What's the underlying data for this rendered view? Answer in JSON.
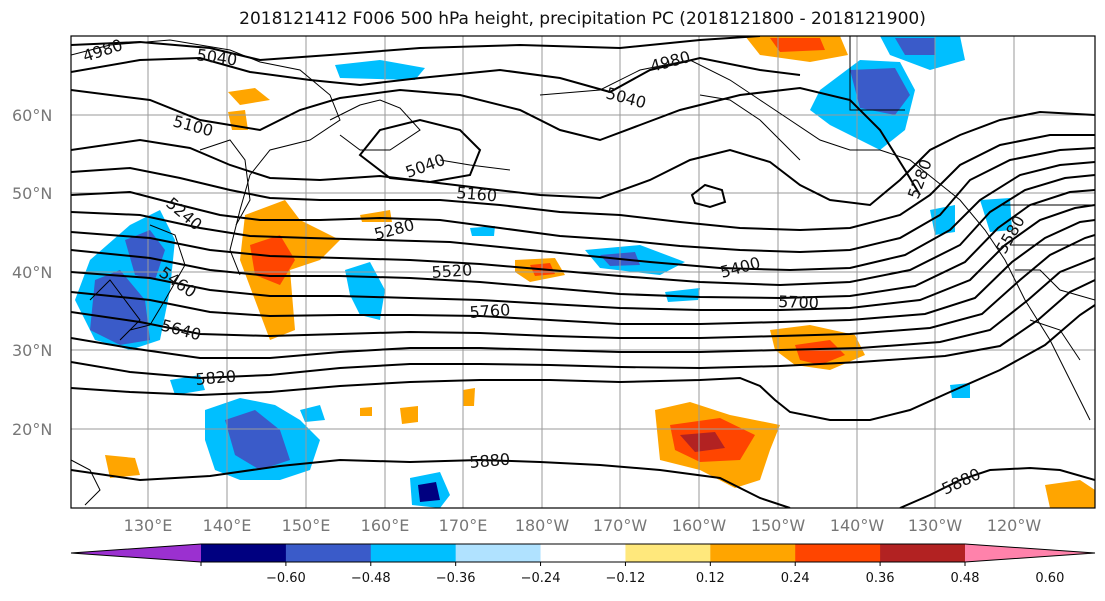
{
  "title": "2018121412 F006 500 hPa height, precipitation PC (2018121800 - 2018121900)",
  "lat_labels": [
    "60°N",
    "50°N",
    "40°N",
    "30°N",
    "20°N"
  ],
  "lon_labels": [
    "130°E",
    "140°E",
    "150°E",
    "160°E",
    "170°E",
    "180°W",
    "170°W",
    "160°W",
    "150°W",
    "140°W",
    "130°W",
    "120°W"
  ],
  "contour_labels": [
    "4980",
    "5040",
    "5100",
    "5040",
    "4980",
    "5040",
    "5160",
    "5240",
    "5280",
    "5460",
    "5520",
    "5400",
    "5640",
    "5760",
    "5700",
    "5820",
    "5880",
    "5880",
    "5280",
    "5580"
  ],
  "colorbar": {
    "ticks": [
      "−0.60",
      "−0.48",
      "−0.36",
      "−0.24",
      "−0.12",
      "0.12",
      "0.24",
      "0.36",
      "0.48",
      "0.60"
    ],
    "colors": [
      "#9b30d0",
      "#000080",
      "#3a5bc9",
      "#00bfff",
      "#b0e2ff",
      "#ffffff",
      "#ffe87c",
      "#ffa500",
      "#ff4500",
      "#b22222",
      "#ff82ab"
    ]
  },
  "colors": {
    "neg_strong": "#3a5bc9",
    "neg_mid": "#00bfff",
    "neg_light": "#b0e2ff",
    "pos_light": "#ffe87c",
    "pos_mid": "#ffa500",
    "pos_strong": "#ff4500",
    "pos_dark": "#b22222"
  }
}
